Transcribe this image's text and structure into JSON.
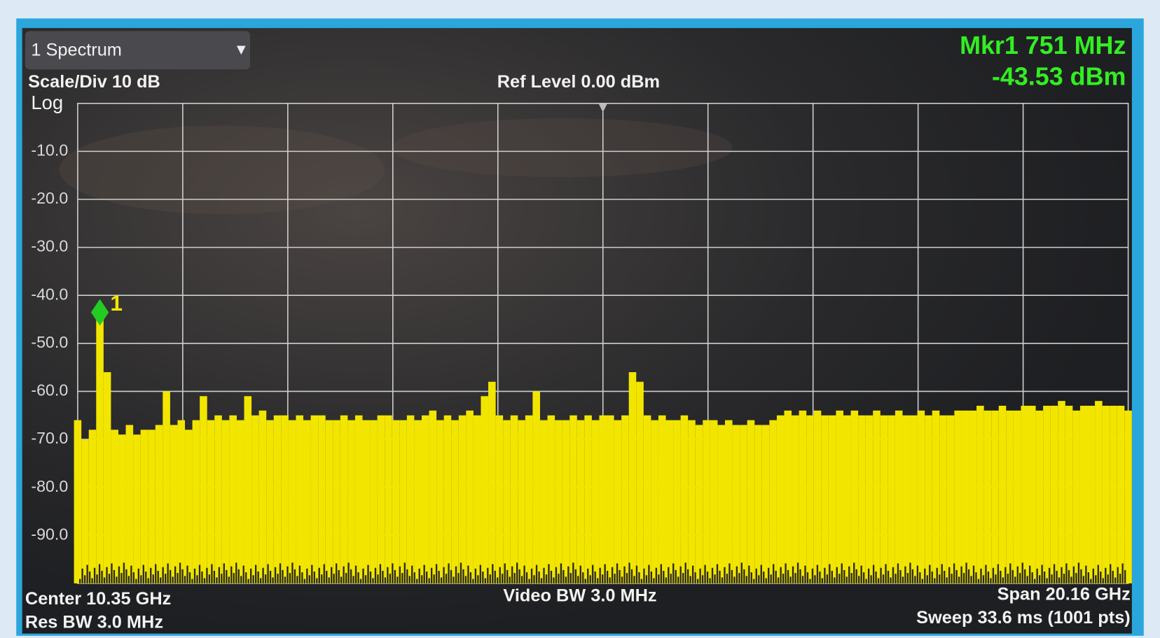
{
  "chart_data": {
    "type": "spectrum",
    "title": "1 Spectrum",
    "scale_label": "Scale/Div 10 dB",
    "scale_type": "Log",
    "ref_level": "Ref Level 0.00 dBm",
    "marker_readout": [
      "Mkr1  751 MHz",
      "-43.53 dBm"
    ],
    "footer": [
      "Center 10.35 GHz",
      "Res BW 3.0 MHz",
      "Video BW 3.0 MHz",
      "Span 20.16 GHz",
      "Sweep 33.6 ms (1001 pts)"
    ],
    "marker": {
      "label": "1",
      "value": -43.53,
      "color": "#22cc22"
    },
    "color": "#f2e600",
    "ylim": [
      -100,
      0
    ],
    "yticks": [
      {
        "value": -10,
        "label": "-10.0"
      },
      {
        "value": -20,
        "label": "-20.0"
      },
      {
        "value": -30,
        "label": "-30.0"
      },
      {
        "value": -40,
        "label": "-40.0"
      },
      {
        "value": -50,
        "label": "-50.0"
      },
      {
        "value": -60,
        "label": "-60.0"
      },
      {
        "value": -70,
        "label": "-70.0"
      },
      {
        "value": -80,
        "label": "-80.0"
      },
      {
        "value": -90,
        "label": "-90.0"
      }
    ],
    "grid": true,
    "values": [
      -66,
      -70,
      -68,
      -43.5,
      -56,
      -68,
      -69,
      -67,
      -69,
      -68,
      -68,
      -67,
      -60,
      -67,
      -66,
      -68,
      -66,
      -61,
      -66,
      -65,
      -66,
      -65,
      -66,
      -61,
      -65,
      -64,
      -66,
      -65,
      -65,
      -66,
      -65,
      -66,
      -65,
      -65,
      -66,
      -66,
      -65,
      -66,
      -65,
      -66,
      -66,
      -65,
      -65,
      -66,
      -66,
      -65,
      -66,
      -65,
      -64,
      -66,
      -65,
      -66,
      -65,
      -64,
      -65,
      -61,
      -58,
      -65,
      -66,
      -65,
      -66,
      -65,
      -60,
      -66,
      -65,
      -66,
      -66,
      -65,
      -66,
      -65,
      -66,
      -65,
      -65,
      -66,
      -65,
      -56,
      -58,
      -65,
      -66,
      -65,
      -66,
      -66,
      -65,
      -66,
      -67,
      -66,
      -66,
      -67,
      -66,
      -67,
      -67,
      -66,
      -67,
      -67,
      -66,
      -65,
      -64,
      -65,
      -64,
      -65,
      -64,
      -65,
      -65,
      -64,
      -65,
      -64,
      -65,
      -65,
      -64,
      -65,
      -65,
      -64,
      -65,
      -65,
      -64,
      -65,
      -64,
      -65,
      -65,
      -64,
      -64,
      -64,
      -63,
      -64,
      -64,
      -63,
      -64,
      -64,
      -63,
      -63,
      -64,
      -63,
      -63,
      -62,
      -63,
      -64,
      -63,
      -63,
      -62,
      -63,
      -63,
      -63,
      -64
    ]
  }
}
